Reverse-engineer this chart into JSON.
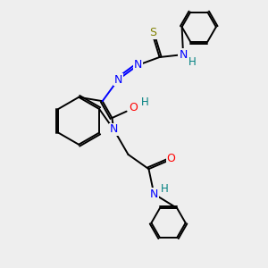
{
  "bg_color": "#eeeeee",
  "bond_color": "#000000",
  "N_color": "#0000ff",
  "O_color": "#ff0000",
  "S_color": "#808000",
  "H_color": "#008080",
  "bond_width": 1.4,
  "figsize": [
    3.0,
    3.0
  ],
  "dpi": 100,
  "xlim": [
    0,
    10
  ],
  "ylim": [
    0,
    10
  ]
}
